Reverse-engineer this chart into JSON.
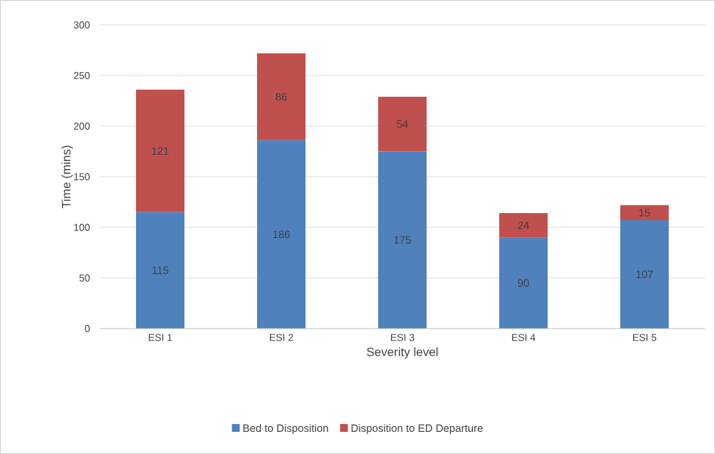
{
  "chart_data": {
    "type": "bar",
    "stacked": true,
    "xlabel": "Severity level",
    "ylabel": "Time (mins)",
    "categories": [
      "ESI 1",
      "ESI 2",
      "ESI 3",
      "ESI 4",
      "ESI 5"
    ],
    "series": [
      {
        "name": "Bed to Disposition",
        "color": "#4f81bd",
        "values": [
          115,
          186,
          175,
          90,
          107
        ]
      },
      {
        "name": "Disposition to ED Departure",
        "color": "#c0504d",
        "values": [
          121,
          86,
          54,
          24,
          15
        ]
      }
    ],
    "ylim": [
      0,
      300
    ],
    "yticks": [
      0,
      50,
      100,
      150,
      200,
      250,
      300
    ],
    "grid": "y",
    "legend": "bottom",
    "data_labels": true
  }
}
